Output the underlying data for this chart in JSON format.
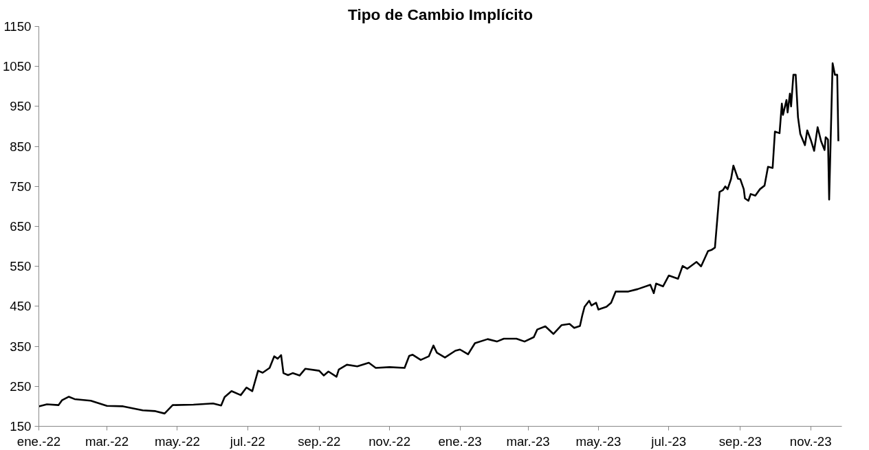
{
  "chart_data": {
    "type": "line",
    "title": "Tipo de Cambio Implícito",
    "x": [
      "2022-01-01",
      "2022-01-08",
      "2022-01-18",
      "2022-01-21",
      "2022-01-27",
      "2022-02-01",
      "2022-02-15",
      "2022-03-01",
      "2022-03-15",
      "2022-04-01",
      "2022-04-12",
      "2022-04-20",
      "2022-04-27",
      "2022-05-15",
      "2022-06-01",
      "2022-06-08",
      "2022-06-11",
      "2022-06-17",
      "2022-06-25",
      "2022-06-30",
      "2022-07-05",
      "2022-07-10",
      "2022-07-14",
      "2022-07-20",
      "2022-07-24",
      "2022-07-27",
      "2022-07-30",
      "2022-08-01",
      "2022-08-05",
      "2022-08-09",
      "2022-08-15",
      "2022-08-20",
      "2022-09-01",
      "2022-09-05",
      "2022-09-09",
      "2022-09-16",
      "2022-09-18",
      "2022-09-25",
      "2022-10-04",
      "2022-10-14",
      "2022-10-20",
      "2022-11-01",
      "2022-11-14",
      "2022-11-18",
      "2022-11-21",
      "2022-11-28",
      "2022-12-05",
      "2022-12-09",
      "2022-12-12",
      "2022-12-19",
      "2022-12-28",
      "2023-01-01",
      "2023-01-08",
      "2023-01-14",
      "2023-01-25",
      "2023-02-02",
      "2023-02-08",
      "2023-02-19",
      "2023-02-26",
      "2023-03-06",
      "2023-03-09",
      "2023-03-16",
      "2023-03-23",
      "2023-03-30",
      "2023-04-06",
      "2023-04-10",
      "2023-04-15",
      "2023-04-17",
      "2023-04-19",
      "2023-04-23",
      "2023-04-25",
      "2023-04-29",
      "2023-05-01",
      "2023-05-08",
      "2023-05-12",
      "2023-05-16",
      "2023-05-27",
      "2023-06-04",
      "2023-06-15",
      "2023-06-18",
      "2023-06-20",
      "2023-06-26",
      "2023-07-01",
      "2023-07-09",
      "2023-07-13",
      "2023-07-17",
      "2023-07-25",
      "2023-07-29",
      "2023-08-04",
      "2023-08-07",
      "2023-08-10",
      "2023-08-14",
      "2023-08-17",
      "2023-08-19",
      "2023-08-21",
      "2023-08-24",
      "2023-08-26",
      "2023-08-30",
      "2023-09-01",
      "2023-09-04",
      "2023-09-05",
      "2023-09-08",
      "2023-09-10",
      "2023-09-14",
      "2023-09-18",
      "2023-09-22",
      "2023-09-25",
      "2023-09-29",
      "2023-10-01",
      "2023-10-05",
      "2023-10-07",
      "2023-10-08",
      "2023-10-11",
      "2023-10-12",
      "2023-10-14",
      "2023-10-15",
      "2023-10-17",
      "2023-10-19",
      "2023-10-21",
      "2023-10-23",
      "2023-10-27",
      "2023-10-29",
      "2023-11-01",
      "2023-11-04",
      "2023-11-07",
      "2023-11-10",
      "2023-11-13",
      "2023-11-14",
      "2023-11-16",
      "2023-11-17",
      "2023-11-20",
      "2023-11-22",
      "2023-11-24",
      "2023-11-25"
    ],
    "series": [
      {
        "color": "#000000",
        "values": [
          200,
          205,
          203,
          215,
          224,
          218,
          214,
          201,
          200,
          190,
          188,
          182,
          203,
          204,
          207,
          202,
          223,
          238,
          228,
          247,
          238,
          289,
          284,
          296,
          325,
          319,
          328,
          283,
          278,
          283,
          277,
          294,
          289,
          277,
          287,
          274,
          292,
          304,
          300,
          309,
          296,
          298,
          296,
          326,
          329,
          316,
          325,
          352,
          334,
          322,
          339,
          342,
          330,
          358,
          368,
          362,
          369,
          369,
          362,
          373,
          392,
          400,
          381,
          403,
          406,
          396,
          401,
          427,
          449,
          464,
          452,
          459,
          442,
          449,
          459,
          487,
          487,
          493,
          504,
          483,
          507,
          500,
          527,
          519,
          551,
          544,
          561,
          550,
          588,
          591,
          597,
          736,
          741,
          750,
          743,
          769,
          802,
          769,
          768,
          743,
          720,
          714,
          731,
          727,
          743,
          752,
          799,
          796,
          887,
          883,
          957,
          929,
          966,
          935,
          982,
          950,
          1029,
          1029,
          923,
          881,
          853,
          890,
          867,
          839,
          898,
          863,
          841,
          873,
          867,
          717,
          1058,
          1029,
          1029,
          863
        ]
      }
    ],
    "xlim": [
      "2022-01-01",
      "2023-11-28"
    ],
    "xticks": [
      {
        "value": "2022-01-01",
        "label": "ene.-22"
      },
      {
        "value": "2022-03-01",
        "label": "mar.-22"
      },
      {
        "value": "2022-05-01",
        "label": "may.-22"
      },
      {
        "value": "2022-07-01",
        "label": "jul.-22"
      },
      {
        "value": "2022-09-01",
        "label": "sep.-22"
      },
      {
        "value": "2022-11-01",
        "label": "nov.-22"
      },
      {
        "value": "2023-01-01",
        "label": "ene.-23"
      },
      {
        "value": "2023-03-01",
        "label": "mar.-23"
      },
      {
        "value": "2023-05-01",
        "label": "may.-23"
      },
      {
        "value": "2023-07-01",
        "label": "jul.-23"
      },
      {
        "value": "2023-09-01",
        "label": "sep.-23"
      },
      {
        "value": "2023-11-01",
        "label": "nov.-23"
      }
    ],
    "ylim": [
      150,
      1150
    ],
    "yticks": [
      150,
      250,
      350,
      450,
      550,
      650,
      750,
      850,
      950,
      1050,
      1150
    ],
    "grid": false,
    "marker": "none",
    "line_style": "solid"
  }
}
